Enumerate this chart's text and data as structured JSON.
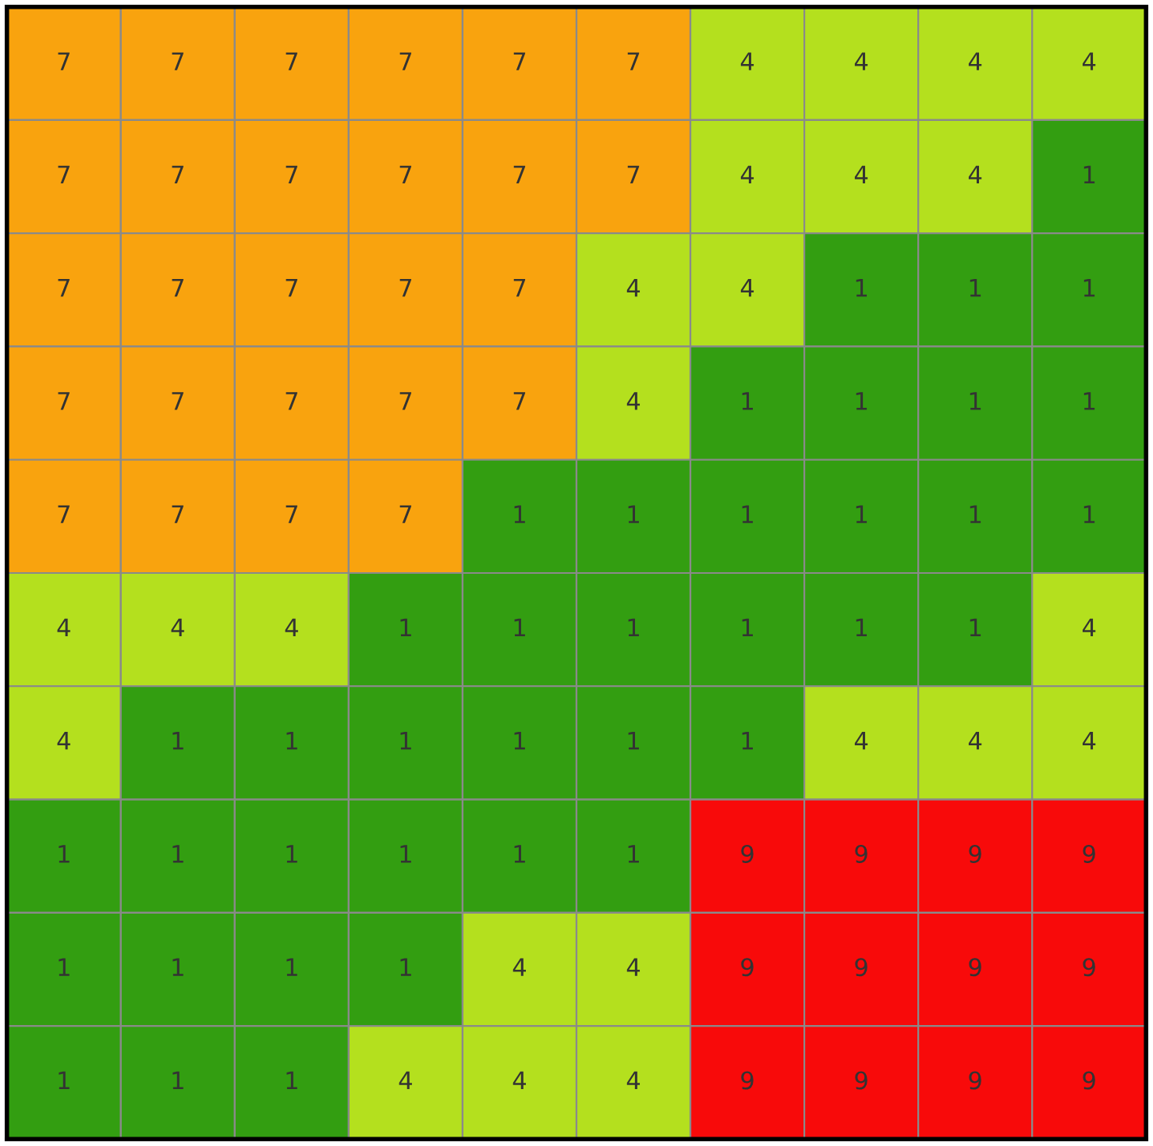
{
  "chart_data": {
    "type": "heatmap",
    "categories": [
      null,
      null,
      null,
      null,
      null,
      null,
      null,
      null,
      null,
      null
    ],
    "y_categories": [
      null,
      null,
      null,
      null,
      null,
      null,
      null,
      null,
      null,
      null
    ],
    "cells": [
      [
        7,
        7,
        7,
        7,
        7,
        7,
        4,
        4,
        4,
        4
      ],
      [
        7,
        7,
        7,
        7,
        7,
        7,
        4,
        4,
        4,
        1
      ],
      [
        7,
        7,
        7,
        7,
        7,
        4,
        4,
        1,
        1,
        1
      ],
      [
        7,
        7,
        7,
        7,
        7,
        4,
        1,
        1,
        1,
        1
      ],
      [
        7,
        7,
        7,
        7,
        1,
        1,
        1,
        1,
        1,
        1
      ],
      [
        4,
        4,
        4,
        1,
        1,
        1,
        1,
        1,
        1,
        4
      ],
      [
        4,
        1,
        1,
        1,
        1,
        1,
        1,
        4,
        4,
        4
      ],
      [
        1,
        1,
        1,
        1,
        1,
        1,
        9,
        9,
        9,
        9
      ],
      [
        1,
        1,
        1,
        1,
        4,
        4,
        9,
        9,
        9,
        9
      ],
      [
        1,
        1,
        1,
        4,
        4,
        4,
        9,
        9,
        9,
        9
      ]
    ],
    "colors": [
      "#339e11",
      "#b4e01e",
      "#f9a30e",
      "#f80a0a"
    ],
    "data_labels": true
  }
}
